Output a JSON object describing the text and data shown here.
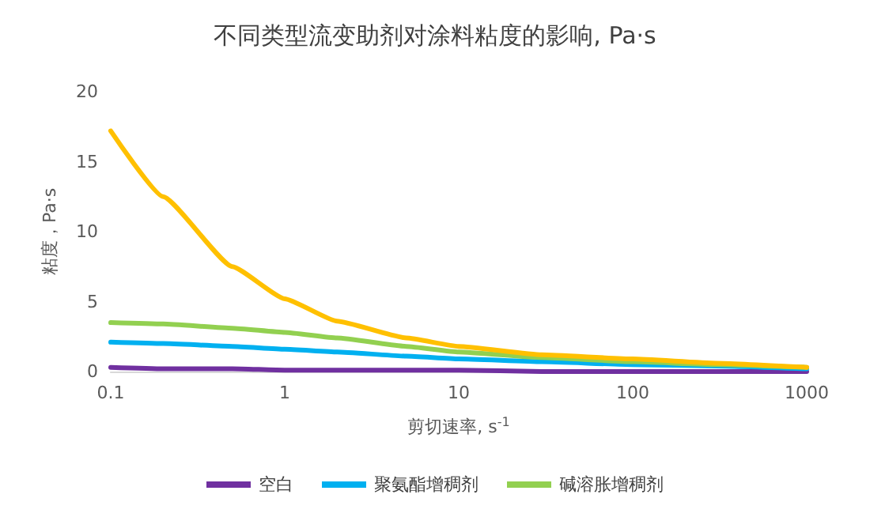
{
  "chart_data": {
    "type": "line",
    "title": "不同类型流变助剂对涂料粘度的影响, Pa·s",
    "xlabel": "剪切速率, s$^{-1}$",
    "ylabel": "粘度，Pa·s",
    "log": "x",
    "xlim": [
      0.1,
      1000
    ],
    "xticks": [
      0.1,
      1,
      10,
      100,
      1000
    ],
    "ylim": [
      0,
      20
    ],
    "yticks": [
      0,
      5,
      10,
      15,
      20
    ],
    "grid": false,
    "legend": "bottom",
    "marker": "none",
    "line_style": "solid",
    "x": [
      0.1,
      0.2,
      0.5,
      1,
      2,
      5,
      10,
      30,
      100,
      300,
      1000
    ],
    "series": [
      {
        "name": "空白",
        "color": "#7030a0",
        "values": [
          0.3,
          0.2,
          0.2,
          0.1,
          0.1,
          0.1,
          0.1,
          0.0,
          0.0,
          0.0,
          0.0
        ]
      },
      {
        "name": "聚氨酯增稠剂",
        "color": "#00b0f0",
        "values": [
          2.1,
          2.0,
          1.8,
          1.6,
          1.4,
          1.1,
          0.9,
          0.7,
          0.5,
          0.4,
          0.2
        ]
      },
      {
        "name": "碱溶胀增稠剂",
        "color": "#92d050",
        "values": [
          3.5,
          3.4,
          3.1,
          2.8,
          2.4,
          1.8,
          1.4,
          1.0,
          0.7,
          0.5,
          0.3
        ]
      },
      {
        "color": "#ffc000",
        "values": [
          17.2,
          12.5,
          7.5,
          5.2,
          3.6,
          2.4,
          1.8,
          1.2,
          0.9,
          0.6,
          0.3
        ]
      }
    ]
  }
}
